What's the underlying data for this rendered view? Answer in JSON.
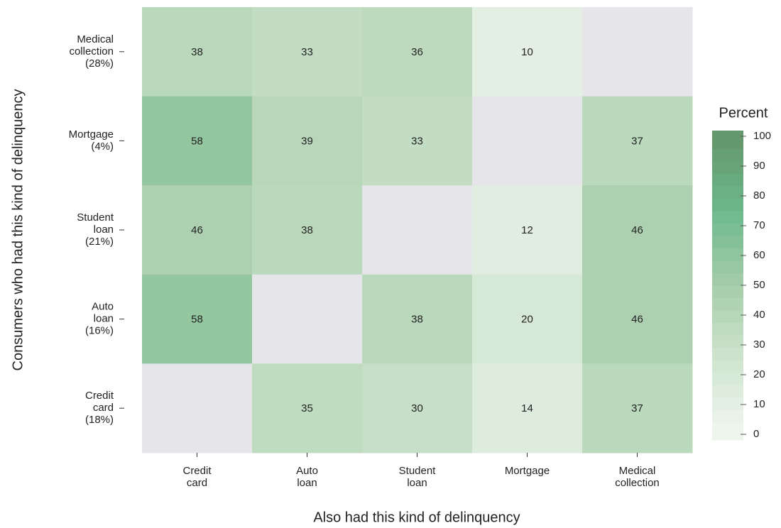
{
  "chart_data": {
    "type": "heatmap",
    "xlabel": "Also had this kind of delinquency",
    "ylabel": "Consumers who had this kind of delinquency",
    "x_categories": [
      [
        "Credit",
        "card"
      ],
      [
        "Auto",
        "loan"
      ],
      [
        "Student",
        "loan"
      ],
      [
        "Mortgage"
      ],
      [
        "Medical",
        "collection"
      ]
    ],
    "y_categories": [
      [
        "Medical",
        "collection",
        "(28%)"
      ],
      [
        "Mortgage",
        "(4%)"
      ],
      [
        "Student",
        "loan",
        "(21%)"
      ],
      [
        "Auto",
        "loan",
        "(16%)"
      ],
      [
        "Credit",
        "card",
        "(18%)"
      ]
    ],
    "values": [
      [
        38,
        33,
        36,
        10,
        null
      ],
      [
        58,
        39,
        33,
        null,
        37
      ],
      [
        46,
        38,
        null,
        12,
        46
      ],
      [
        58,
        null,
        38,
        20,
        46
      ],
      [
        null,
        35,
        30,
        14,
        37
      ]
    ],
    "colorbar_title": "Percent",
    "clim": [
      0,
      100
    ],
    "cticks": [
      0,
      10,
      20,
      30,
      40,
      50,
      60,
      70,
      80,
      90,
      100
    ],
    "colors": [
      "#f0f6f0",
      "#cfe4cf",
      "#a6cdaa",
      "#6db88c",
      "#64966a"
    ],
    "na_color": "#e6e6ea"
  }
}
